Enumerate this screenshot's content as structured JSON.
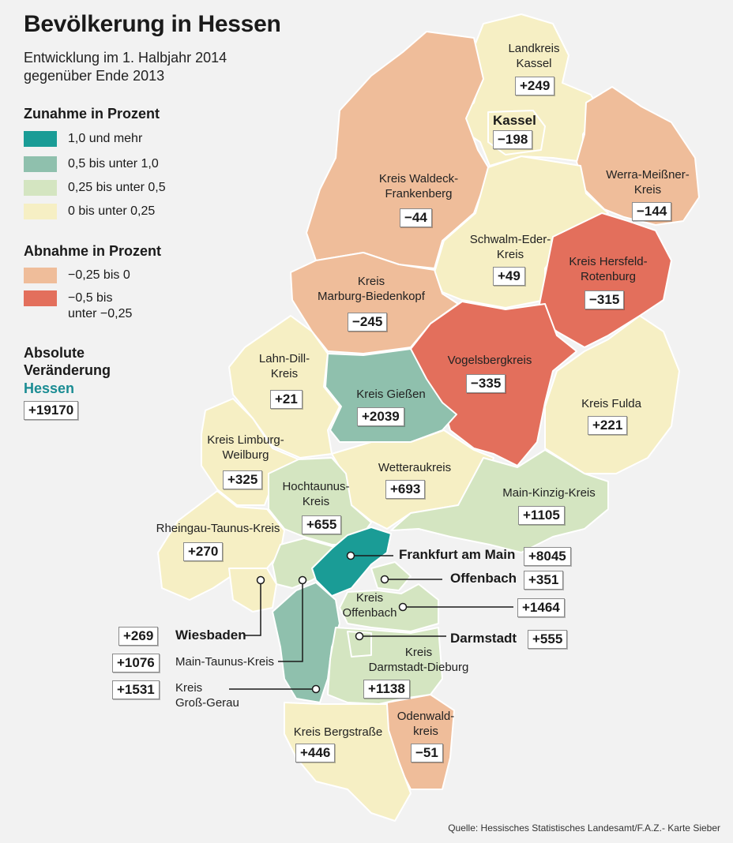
{
  "title": "Bevölkerung in Hessen",
  "subtitle_line1": "Entwicklung im 1. Halbjahr 2014",
  "subtitle_line2": "gegenüber Ende 2013",
  "legend": {
    "increase_heading": "Zunahme in Prozent",
    "increase": [
      {
        "label": "1,0 und mehr",
        "color": "#1a9c96"
      },
      {
        "label": "0,5 bis unter 1,0",
        "color": "#8fc0ad"
      },
      {
        "label": "0,25 bis unter 0,5",
        "color": "#d4e5c1"
      },
      {
        "label": "0 bis unter 0,25",
        "color": "#f6efc4"
      }
    ],
    "decrease_heading": "Abnahme in Prozent",
    "decrease": [
      {
        "label": "−0,25 bis 0",
        "color": "#efbd9a"
      },
      {
        "label_line1": "−0,5 bis",
        "label_line2": "unter −0,25",
        "color": "#e36f5c"
      }
    ],
    "absolute_heading_line1": "Absolute",
    "absolute_heading_line2": "Veränderung",
    "hessen_label": "Hessen",
    "hessen_value": "+19170"
  },
  "regions": {
    "kassel_lk": {
      "name_line1": "Landkreis",
      "name_line2": "Kassel",
      "value": "+249"
    },
    "kassel": {
      "name": "Kassel",
      "value": "−198"
    },
    "werra": {
      "name_line1": "Werra-Meißner-",
      "name_line2": "Kreis",
      "value": "−144"
    },
    "waldeck": {
      "name_line1": "Kreis Waldeck-",
      "name_line2": "Frankenberg",
      "value": "−44"
    },
    "schwalm": {
      "name_line1": "Schwalm-Eder-",
      "name_line2": "Kreis",
      "value": "+49"
    },
    "hersfeld": {
      "name_line1": "Kreis Hersfeld-",
      "name_line2": "Rotenburg",
      "value": "−315"
    },
    "marburg": {
      "name_line1": "Kreis",
      "name_line2": "Marburg-Biedenkopf",
      "value": "−245"
    },
    "vogelsberg": {
      "name": "Vogelsbergkreis",
      "value": "−335"
    },
    "lahndill": {
      "name_line1": "Lahn-Dill-",
      "name_line2": "Kreis",
      "value": "+21"
    },
    "giessen": {
      "name": "Kreis Gießen",
      "value": "+2039"
    },
    "fulda": {
      "name": "Kreis Fulda",
      "value": "+221"
    },
    "limburg": {
      "name_line1": "Kreis Limburg-",
      "name_line2": "Weilburg",
      "value": "+325"
    },
    "wetterau": {
      "name": "Wetteraukreis",
      "value": "+693"
    },
    "hochtaunus": {
      "name_line1": "Hochtaunus-",
      "name_line2": "Kreis",
      "value": "+655"
    },
    "mainkinzig": {
      "name": "Main-Kinzig-Kreis",
      "value": "+1105"
    },
    "rheingau": {
      "name": "Rheingau-Taunus-Kreis",
      "value": "+270"
    },
    "frankfurt": {
      "name": "Frankfurt am Main",
      "value": "+8045"
    },
    "offenbach": {
      "name": "Offenbach",
      "value": "+351"
    },
    "kroffenbach": {
      "name_line1": "Kreis",
      "name_line2": "Offenbach",
      "value": "+1464"
    },
    "wiesbaden": {
      "name": "Wiesbaden",
      "value": "+269"
    },
    "darmstadt": {
      "name": "Darmstadt",
      "value": "+555"
    },
    "maintaunus": {
      "name": "Main-Taunus-Kreis",
      "value": "+1076"
    },
    "darmdieburg": {
      "name_line1": "Kreis",
      "name_line2": "Darmstadt-Dieburg",
      "value": "+1138"
    },
    "grossgerau": {
      "name_line1": "Kreis",
      "name_line2": "Groß-Gerau",
      "value": "+1531"
    },
    "bergstrasse": {
      "name": "Kreis Bergstraße",
      "value": "+446"
    },
    "odenwald": {
      "name_line1": "Odenwald-",
      "name_line2": "kreis",
      "value": "−51"
    }
  },
  "source": "Quelle: Hessisches Statistisches Landesamt/F.A.Z.- Karte Sieber"
}
